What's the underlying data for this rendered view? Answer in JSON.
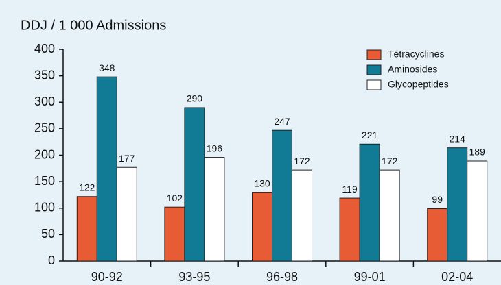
{
  "chart_data": {
    "type": "bar",
    "title": "DDJ / 1 000 Admissions",
    "categories": [
      "90-92",
      "93-95",
      "96-98",
      "99-01",
      "02-04"
    ],
    "series": [
      {
        "name": "Tétracyclines",
        "color": "#e85c35",
        "values": [
          122,
          102,
          130,
          119,
          99
        ]
      },
      {
        "name": "Aminosides",
        "color": "#117a94",
        "values": [
          348,
          290,
          247,
          221,
          214
        ]
      },
      {
        "name": "Glycopeptides",
        "color": "#ffffff",
        "values": [
          177,
          196,
          172,
          172,
          189
        ]
      }
    ],
    "ylim": [
      0,
      400
    ],
    "yticks": [
      0,
      50,
      100,
      150,
      200,
      250,
      300,
      350,
      400
    ],
    "legend": "top-right",
    "grid": false
  }
}
